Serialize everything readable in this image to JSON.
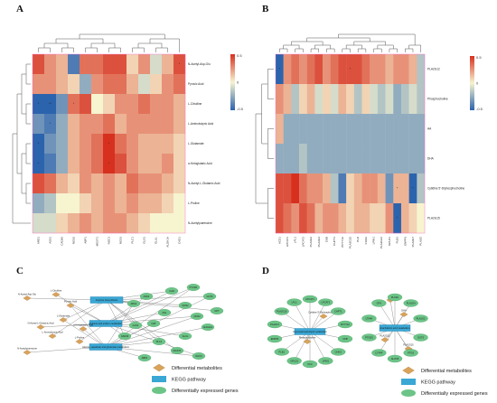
{
  "panels": {
    "a": {
      "letter": "A"
    },
    "b": {
      "letter": "B"
    },
    "c": {
      "letter": "C"
    },
    "d": {
      "letter": "D"
    }
  },
  "heatmapA": {
    "rows": [
      "N-Acetyl-Asp-Glu",
      "Pyruvic Acid",
      "L-Citrulline",
      "L-Aminobutyric Acid",
      "L-Glutamate",
      "α-Ketoglutaric Acid",
      "N-Acetyl-L-Glutamic Acid",
      "L-Proline",
      "N-Acetylputrescine"
    ],
    "cols": [
      "ARG1",
      "ASS1",
      "CAD96",
      "NOS2",
      "ABP1",
      "MGST1",
      "NOC3",
      "NOS3",
      "PLC1",
      "GLS1",
      "GLUL",
      "ALDH1A",
      "CAD1"
    ],
    "matrix": [
      [
        0.5,
        0.3,
        0.2,
        -0.5,
        0.4,
        0.4,
        0.5,
        0.5,
        0.1,
        0.3,
        -0.1,
        0.2,
        0.5
      ],
      [
        0.3,
        0.3,
        0.2,
        0.1,
        -0.3,
        0.3,
        0.4,
        0.4,
        0.2,
        -0.1,
        0.1,
        0.3,
        0.4
      ],
      [
        -0.6,
        -0.7,
        -0.4,
        0.4,
        0.5,
        0.0,
        0.1,
        0.3,
        0.3,
        0.4,
        0.3,
        0.3,
        0.2
      ],
      [
        -0.4,
        -0.5,
        -0.3,
        0.2,
        0.3,
        0.3,
        0.4,
        0.2,
        0.3,
        0.3,
        0.3,
        0.3,
        0.2
      ],
      [
        -0.6,
        -0.4,
        -0.3,
        0.2,
        0.3,
        0.4,
        0.6,
        0.4,
        0.3,
        0.2,
        0.2,
        0.2,
        0.1
      ],
      [
        -0.6,
        -0.5,
        -0.3,
        0.2,
        0.3,
        0.4,
        0.6,
        0.5,
        0.3,
        0.2,
        0.2,
        0.3,
        0.1
      ],
      [
        0.5,
        0.4,
        0.2,
        0.1,
        0.3,
        0.2,
        0.3,
        0.2,
        0.4,
        0.3,
        0.3,
        0.2,
        0.1
      ],
      [
        -0.3,
        -0.2,
        0.0,
        0.0,
        0.1,
        0.2,
        0.3,
        0.2,
        0.3,
        0.2,
        0.2,
        0.1,
        0.0
      ],
      [
        -0.1,
        -0.1,
        0.1,
        0.2,
        0.3,
        0.2,
        0.3,
        0.3,
        0.2,
        0.1,
        0.0,
        0.0,
        0.0
      ]
    ],
    "marks": [
      [
        "0,12",
        "*"
      ],
      [
        "2,0",
        "*"
      ],
      [
        "2,1",
        "**"
      ],
      [
        "2,3",
        "*"
      ],
      [
        "3,1",
        "*"
      ],
      [
        "4,0",
        "*"
      ],
      [
        "4,6",
        "*"
      ],
      [
        "5,0",
        "*"
      ],
      [
        "5,6",
        "*"
      ]
    ],
    "scale": {
      "max": "0.5",
      "mid": "0",
      "min": "-0.5"
    }
  },
  "heatmapB": {
    "rows": [
      "PLA2G12",
      "Phosphocholine",
      "AA",
      "DHA",
      "Cytidine 5'-Diphosphocholine",
      "PLA2G15"
    ],
    "cols": [
      "ACD1",
      "LPCAT1",
      "LPL1",
      "LPCAT2",
      "PLA2G2",
      "PLA2G4",
      "CKB",
      "CHPT1",
      "PCYT1A",
      "PLA2G10",
      "PLD",
      "CHKA",
      "LPIN1",
      "PLA2G12",
      "GPLD1",
      "PLB1",
      "ENPP6",
      "PLA2G7",
      "PLA2G"
    ],
    "matrix": [
      [
        -0.8,
        0.3,
        0.4,
        0.3,
        0.4,
        0.5,
        0.3,
        0.4,
        0.5,
        0.5,
        0.5,
        0.4,
        0.3,
        0.3,
        0.2,
        0.3,
        0.3,
        0.2,
        -0.2
      ],
      [
        0.3,
        0.2,
        -0.2,
        0.1,
        0.2,
        -0.1,
        0.1,
        -0.1,
        0.2,
        0.1,
        -0.2,
        0.1,
        -0.1,
        -0.2,
        -0.1,
        -0.3,
        -0.2,
        -0.1,
        -0.2
      ],
      [
        0.2,
        -0.3,
        -0.3,
        -0.3,
        -0.3,
        -0.3,
        -0.3,
        -0.3,
        -0.3,
        -0.3,
        -0.3,
        -0.3,
        -0.3,
        -0.3,
        -0.3,
        -0.3,
        -0.3,
        -0.3,
        -0.3
      ],
      [
        -0.3,
        -0.3,
        -0.3,
        -0.2,
        -0.3,
        -0.3,
        -0.3,
        -0.3,
        -0.3,
        -0.3,
        -0.3,
        -0.3,
        -0.3,
        -0.3,
        -0.3,
        -0.3,
        -0.3,
        -0.3,
        -0.3
      ],
      [
        0.5,
        0.5,
        0.6,
        0.4,
        0.3,
        0.3,
        0.2,
        -0.2,
        -0.5,
        0.1,
        0.2,
        0.3,
        0.3,
        0.2,
        -0.4,
        0.2,
        0.2,
        -0.6,
        -0.2
      ],
      [
        0.5,
        0.4,
        0.3,
        0.5,
        0.4,
        0.2,
        0.3,
        0.3,
        0.2,
        0.1,
        0.2,
        0.2,
        0.1,
        0.1,
        0.3,
        -0.6,
        0.2,
        0.1,
        0.0
      ]
    ],
    "marks": [
      [
        "0,0",
        "*"
      ],
      [
        "0,9",
        "*"
      ],
      [
        "4,15",
        "*"
      ],
      [
        "4,17",
        "*"
      ],
      [
        "5,15",
        "*"
      ]
    ],
    "scale": {
      "max": "0.5",
      "mid": "0",
      "min": "-0.5"
    }
  },
  "networkC": {
    "pathways": [
      "Arginine biosynthesis",
      "Arginine and proline metabolism",
      "Alanine, aspartate and glutamate metabolism"
    ],
    "metabolites": [
      "N-Acetyl-Asp-Glu",
      "L-Citrulline",
      "Pyruvic Acid",
      "L-Glutamate",
      "N-Acetyl-L-Glutamic Acid",
      "α-Ketoglutaric Acid",
      "L-Aminobutyric Acid",
      "L-Proline",
      "N-Acetylputrescine"
    ],
    "genes": [
      "CAD",
      "ASS1",
      "ARG1",
      "NOS2",
      "NOS3",
      "ALDH1A",
      "GLS1",
      "GLUL",
      "PLC1",
      "MGST1",
      "NOC3",
      "ABP1",
      "CAD96",
      "ASL",
      "GOT2",
      "GPT",
      "PYCR1",
      "OAT"
    ]
  },
  "networkD": {
    "pathways": [
      "Glycerophospholipid metabolism",
      "Arachidonic acid metabolism"
    ],
    "metabolites": [
      "Cytidine 5'-Diphosphocholine",
      "Phosphocholine",
      "AA",
      "DHA",
      "PLA2G12",
      "PLA2G15"
    ],
    "genes1": [
      "LPCAT1",
      "LPCAT2",
      "CHPT1",
      "PCYT1A",
      "CKB",
      "CHKA",
      "LPIN1",
      "PLD",
      "GPLD1",
      "PLB1",
      "ENPP6",
      "PLA2G7",
      "PLA2G10",
      "LPL1"
    ],
    "genes2": [
      "PLA2G",
      "PLA2G4",
      "PLA2G2",
      "GGT5",
      "PTGS",
      "ALOX5",
      "CYP4F",
      "PTGES",
      "LTA4H",
      "GPX"
    ]
  },
  "legend": {
    "metabolites": "Differential metabolites",
    "kegg": "KEGG pathway",
    "genes": "Differentially expressed genes"
  },
  "colors": {
    "pos": "#d7301f",
    "mid": "#f7f4d0",
    "neg": "#2c63ad",
    "pathway": "#3aa7d4",
    "metabolite": "#d9a35a",
    "gene": "#6cc487",
    "pathway_border": "#1f7fb0"
  }
}
